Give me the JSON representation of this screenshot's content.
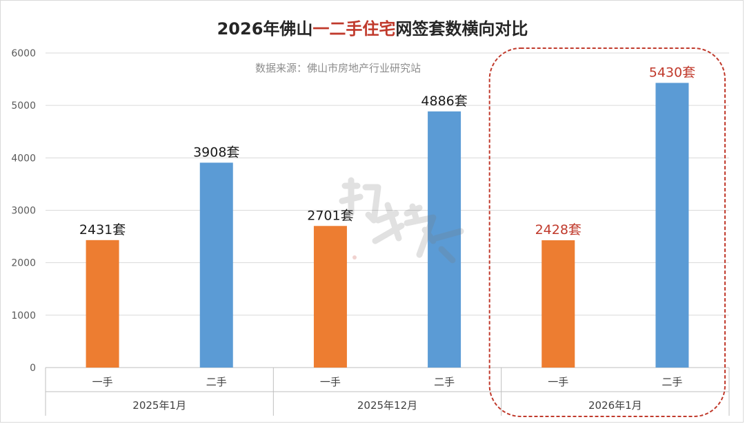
{
  "chart_data": {
    "type": "bar",
    "title_parts": [
      "2026年佛山",
      "一二手住宅",
      "网签套数横向对比"
    ],
    "subtitle": "数据来源：佛山市房地产行业研究站",
    "ylim": [
      0,
      6000
    ],
    "yticks": [
      "0",
      "1000",
      "2000",
      "3000",
      "4000",
      "5000",
      "6000"
    ],
    "groups": [
      "2025年1月",
      "2025年12月",
      "2026年1月"
    ],
    "categories": [
      "一手",
      "二手",
      "一手",
      "二手",
      "一手",
      "二手"
    ],
    "values": [
      2431,
      3908,
      2701,
      4886,
      2428,
      5430
    ],
    "labels": [
      "2431套",
      "3908套",
      "2701套",
      "4886套",
      "2428套",
      "5430套"
    ],
    "colors": [
      "#ed7d31",
      "#5b9bd5",
      "#ed7d31",
      "#5b9bd5",
      "#ed7d31",
      "#5b9bd5"
    ],
    "label_colors": [
      "#1a1a1a",
      "#1a1a1a",
      "#1a1a1a",
      "#1a1a1a",
      "#c0392b",
      "#c0392b"
    ],
    "highlight_group": "2026年1月",
    "highlight_color": "#c0392b",
    "grid": true
  }
}
